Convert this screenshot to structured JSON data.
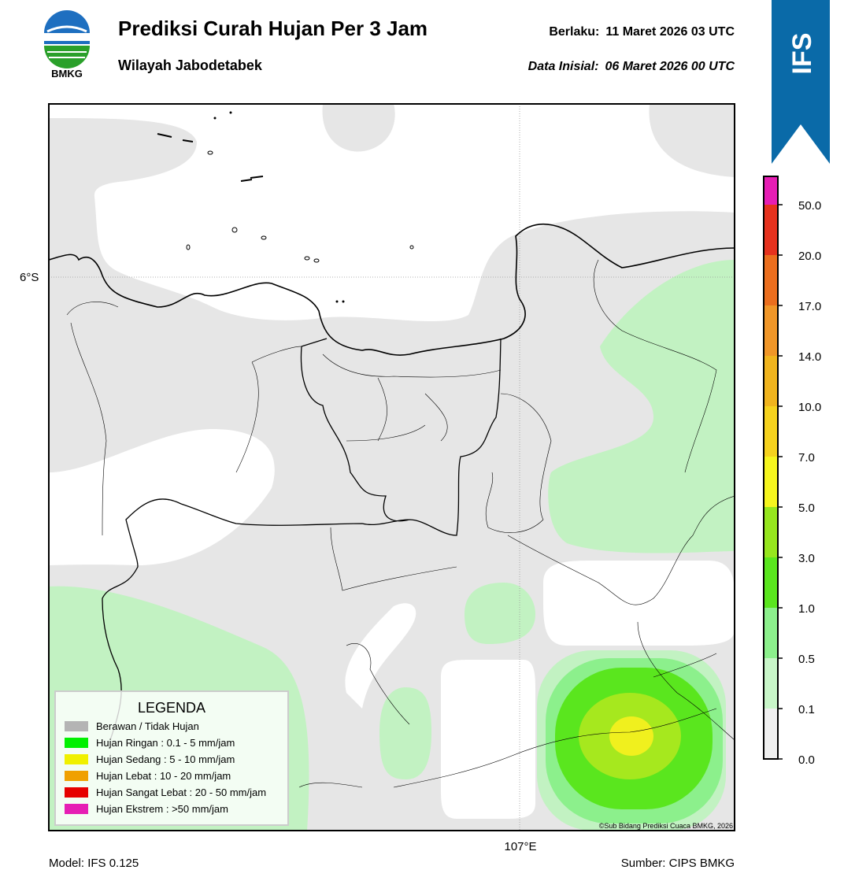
{
  "header": {
    "logo_text": "BMKG",
    "title": "Prediksi Curah Hujan Per 3 Jam",
    "subtitle": "Wilayah Jabodetabek",
    "valid_label": "Berlaku:",
    "valid_value": "11 Maret 2026 03 UTC",
    "init_label": "Data Inisial:",
    "init_value": "06 Maret 2026 00 UTC"
  },
  "badge": "IFS",
  "map": {
    "lat_label": "6°S",
    "lon_label": "107°E",
    "credit": "©Sub Bidang Prediksi Cuaca BMKG, 2026"
  },
  "legend": {
    "title": "LEGENDA",
    "items": [
      {
        "label": "Berawan / Tidak Hujan",
        "color": "#b4b4b4"
      },
      {
        "label": "Hujan Ringan : 0.1 - 5 mm/jam",
        "color": "#00f000"
      },
      {
        "label": "Hujan Sedang : 5 - 10 mm/jam",
        "color": "#f0f000"
      },
      {
        "label": "Hujan Lebat : 10 - 20 mm/jam",
        "color": "#f0a000"
      },
      {
        "label": "Hujan Sangat Lebat : 20 - 50 mm/jam",
        "color": "#e60000"
      },
      {
        "label": "Hujan Ekstrem : >50 mm/jam",
        "color": "#e61eb4"
      }
    ]
  },
  "colorbar": {
    "ticks": [
      "0.0",
      "0.1",
      "0.5",
      "1.0",
      "3.0",
      "5.0",
      "7.0",
      "10.0",
      "14.0",
      "17.0",
      "20.0",
      "50.0"
    ],
    "colors": [
      "#efefef",
      "#c8f5c8",
      "#8cf08c",
      "#5ae61e",
      "#96e61e",
      "#f5f51e",
      "#f5d21e",
      "#f0b41e",
      "#f09628",
      "#eb6e1e",
      "#e6321e",
      "#e61eb4"
    ]
  },
  "footer": {
    "model": "Model: IFS 0.125",
    "source": "Sumber: CIPS BMKG"
  }
}
